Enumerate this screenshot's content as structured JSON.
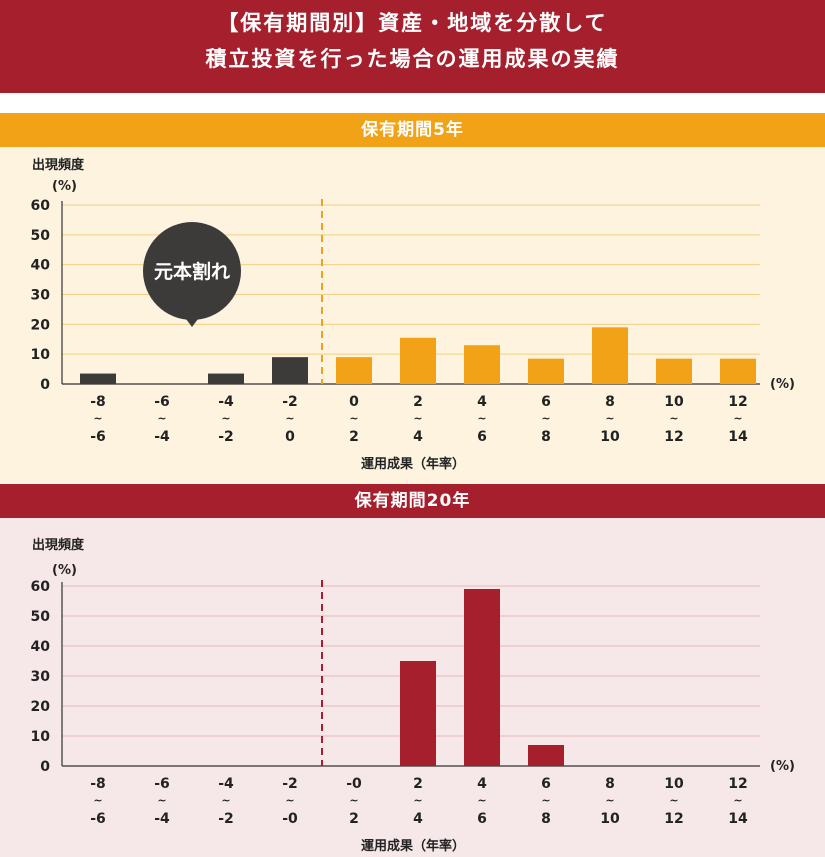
{
  "header": {
    "line1": "【保有期間別】資産・地域を分散して",
    "line2": "積立投資を行った場合の運用成果の実績"
  },
  "colors": {
    "header_bg": "#a51f2d",
    "orange": "#f1a217",
    "loss_dark": "#3d3a3a",
    "red": "#a51f2d",
    "panel5_bg": "#fdf3df",
    "panel20_bg": "#f6e7e8"
  },
  "chart_data": [
    {
      "type": "bar",
      "title": "保有期間5年",
      "ylabel": "出現頻度",
      "yunit": "(%)",
      "xunit": "(%)",
      "xlabel": "運用成果（年率）",
      "ylim": [
        0,
        60
      ],
      "yticks": [
        0,
        10,
        20,
        30,
        40,
        50,
        60
      ],
      "categories": [
        [
          "-8",
          "~",
          "-6"
        ],
        [
          "-6",
          "~",
          "-4"
        ],
        [
          "-4",
          "~",
          "-2"
        ],
        [
          "-2",
          "~",
          "0"
        ],
        [
          "0",
          "~",
          "2"
        ],
        [
          "2",
          "~",
          "4"
        ],
        [
          "4",
          "~",
          "6"
        ],
        [
          "6",
          "~",
          "8"
        ],
        [
          "8",
          "~",
          "10"
        ],
        [
          "10",
          "~",
          "12"
        ],
        [
          "12",
          "~",
          "14"
        ]
      ],
      "values": [
        3.5,
        0,
        3.5,
        9,
        9,
        15.5,
        13,
        8.5,
        19,
        8.5,
        8.5
      ],
      "loss_bins": 4,
      "callout": "元本割れ",
      "grid": true
    },
    {
      "type": "bar",
      "title": "保有期間20年",
      "ylabel": "出現頻度",
      "yunit": "(%)",
      "xunit": "(%)",
      "xlabel": "運用成果（年率）",
      "ylim": [
        0,
        60
      ],
      "yticks": [
        0,
        10,
        20,
        30,
        40,
        50,
        60
      ],
      "categories": [
        [
          "-8",
          "~",
          "-6"
        ],
        [
          "-6",
          "~",
          "-4"
        ],
        [
          "-4",
          "~",
          "-2"
        ],
        [
          "-2",
          "~",
          "-0"
        ],
        [
          "-0",
          "~",
          "2"
        ],
        [
          "2",
          "~",
          "4"
        ],
        [
          "4",
          "~",
          "6"
        ],
        [
          "6",
          "~",
          "8"
        ],
        [
          "8",
          "~",
          "10"
        ],
        [
          "10",
          "~",
          "12"
        ],
        [
          "12",
          "~",
          "14"
        ]
      ],
      "values": [
        0,
        0,
        0,
        0,
        0,
        35,
        59,
        7,
        0,
        0,
        0
      ],
      "loss_bins": 4,
      "grid": true
    }
  ]
}
